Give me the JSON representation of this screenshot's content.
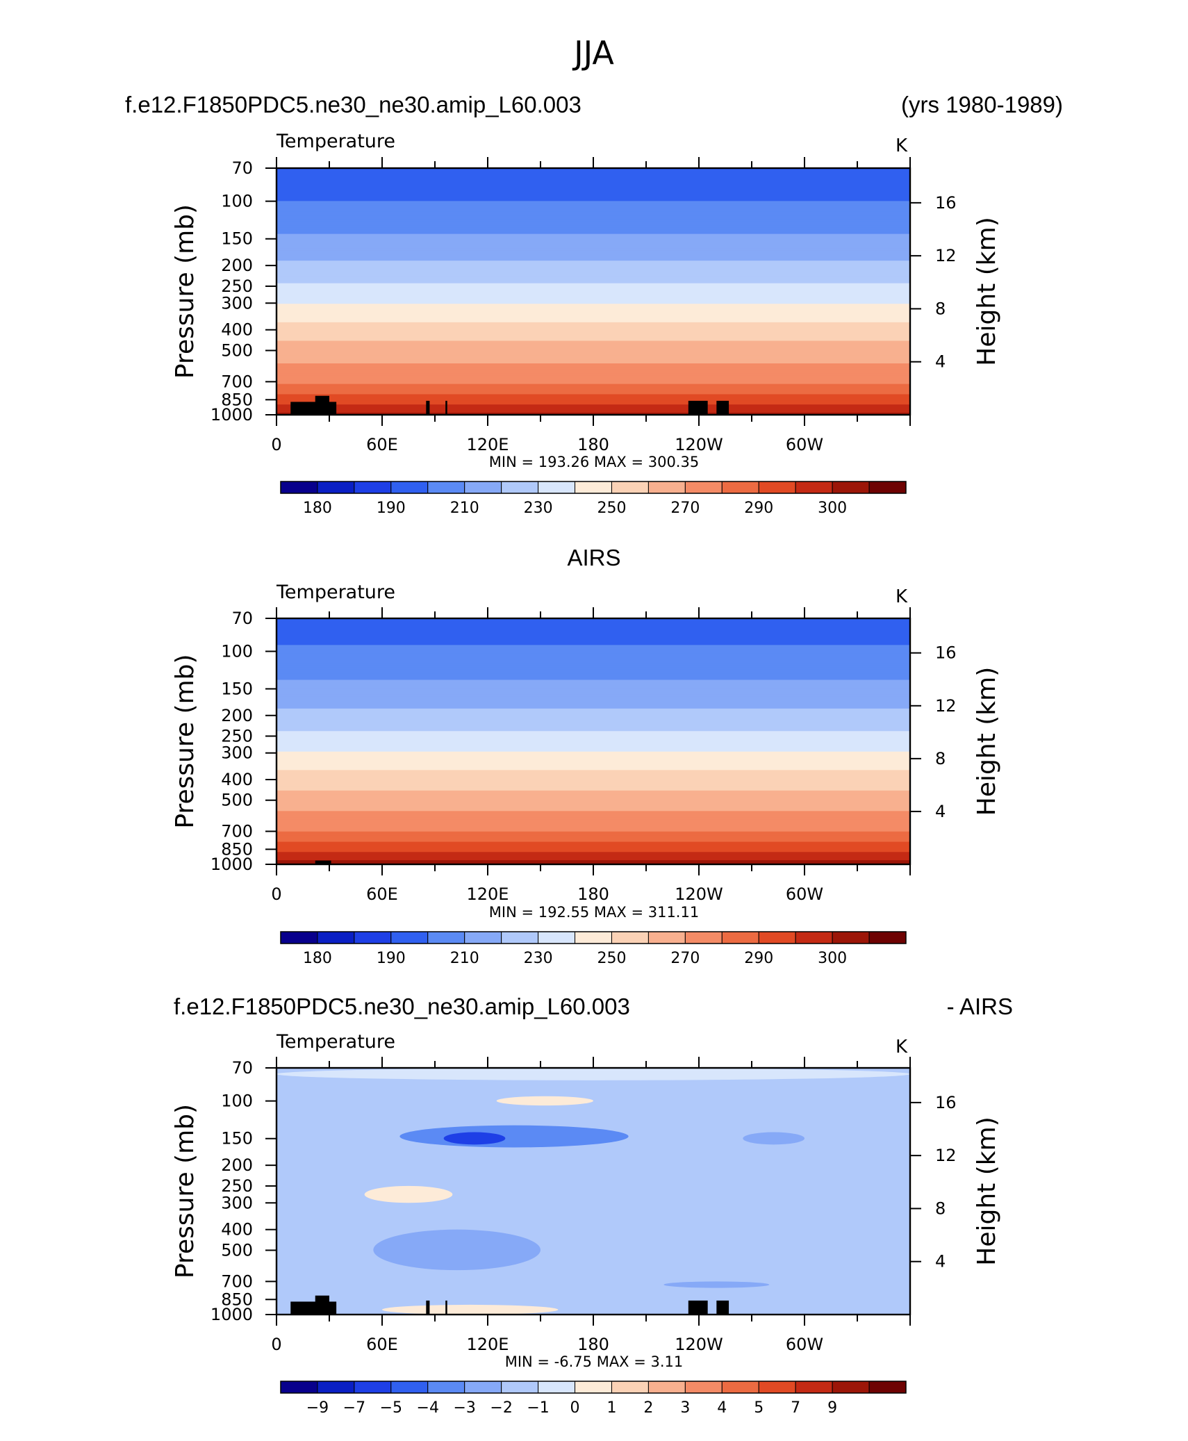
{
  "page": {
    "title": "JJA"
  },
  "panels": [
    {
      "header_left": "f.e12.F1850PDC5.ne30_ne30.amip_L60.003",
      "header_center": "",
      "header_right": "(yrs 1980-1989)",
      "variable": "Temperature",
      "units": "K",
      "stats": "MIN =  193.26   MAX =  300.35"
    },
    {
      "header_left": "",
      "header_center": "AIRS",
      "header_right": "",
      "variable": "Temperature",
      "units": "K",
      "stats": "MIN =  192.55   MAX =  311.11"
    },
    {
      "header_left": "f.e12.F1850PDC5.ne30_ne30.amip_L60.003",
      "header_center": "",
      "header_right": "- AIRS",
      "variable": "Temperature",
      "units": "K",
      "stats": "MIN =    -6.75   MAX =     3.11"
    }
  ],
  "colors": {
    "temperature_scale": [
      "#08008c",
      "#0a1fc4",
      "#1e3fe6",
      "#3060f0",
      "#5b8af4",
      "#86a9f7",
      "#b0c9fa",
      "#d8e6fc",
      "#fdebd8",
      "#fbd2b6",
      "#f8b08f",
      "#f48b66",
      "#ec6b42",
      "#e14a24",
      "#c42a14",
      "#9c1608",
      "#6e0202"
    ],
    "difference_scale": [
      "#08008c",
      "#0a1fc4",
      "#1e3fe6",
      "#3060f0",
      "#5b8af4",
      "#86a9f7",
      "#b0c9fa",
      "#d8e6fc",
      "#fdebd8",
      "#fbd2b6",
      "#f8b08f",
      "#f48b66",
      "#ec6b42",
      "#e14a24",
      "#c42a14",
      "#9c1608",
      "#6e0202"
    ]
  },
  "chart_data": [
    {
      "type": "heatmap",
      "title": "f.e12.F1850PDC5.ne30_ne30.amip_L60.003",
      "xlabel": "",
      "ylabel": "Pressure (mb)",
      "y2label": "Height (km)",
      "x_ticks": [
        "0",
        "60E",
        "120E",
        "180",
        "120W",
        "60W"
      ],
      "y_ticks": [
        "70",
        "100",
        "150",
        "200",
        "250",
        "300",
        "400",
        "500",
        "700",
        "850",
        "1000"
      ],
      "y2_ticks": [
        "16",
        "12",
        "8",
        "4"
      ],
      "ylim": [
        1000,
        70
      ],
      "log_scale_y": true,
      "colorbar_labels": [
        "180",
        "190",
        "210",
        "230",
        "250",
        "270",
        "290",
        "300"
      ],
      "levels": [
        175,
        180,
        185,
        190,
        200,
        210,
        220,
        230,
        240,
        250,
        260,
        270,
        280,
        285,
        290,
        295,
        300,
        305
      ],
      "profile": {
        "pressure": [
          1000,
          925,
          850,
          700,
          600,
          500,
          400,
          300,
          250,
          200,
          150,
          100,
          70
        ],
        "value": [
          297,
          292,
          288,
          279,
          272,
          265,
          254,
          240,
          232,
          222,
          212,
          200,
          196
        ]
      },
      "min": 193.26,
      "max": 300.35
    },
    {
      "type": "heatmap",
      "title": "AIRS",
      "xlabel": "",
      "ylabel": "Pressure (mb)",
      "y2label": "Height (km)",
      "x_ticks": [
        "0",
        "60E",
        "120E",
        "180",
        "120W",
        "60W"
      ],
      "y_ticks": [
        "70",
        "100",
        "150",
        "200",
        "250",
        "300",
        "400",
        "500",
        "700",
        "850",
        "1000"
      ],
      "y2_ticks": [
        "16",
        "12",
        "8",
        "4"
      ],
      "ylim": [
        1000,
        70
      ],
      "log_scale_y": true,
      "colorbar_labels": [
        "180",
        "190",
        "210",
        "230",
        "250",
        "270",
        "290",
        "300"
      ],
      "levels": [
        175,
        180,
        185,
        190,
        200,
        210,
        220,
        230,
        240,
        250,
        260,
        270,
        280,
        285,
        290,
        295,
        300,
        305
      ],
      "profile": {
        "pressure": [
          1000,
          925,
          850,
          700,
          600,
          500,
          400,
          300,
          250,
          200,
          150,
          100,
          70
        ],
        "value": [
          298,
          293,
          289,
          280,
          273,
          266,
          255,
          241,
          233,
          223,
          213,
          201,
          196
        ]
      },
      "min": 192.55,
      "max": 311.11
    },
    {
      "type": "heatmap",
      "title": "f.e12.F1850PDC5.ne30_ne30.amip_L60.003 - AIRS",
      "xlabel": "",
      "ylabel": "Pressure (mb)",
      "y2label": "Height (km)",
      "x_ticks": [
        "0",
        "60E",
        "120E",
        "180",
        "120W",
        "60W"
      ],
      "y_ticks": [
        "70",
        "100",
        "150",
        "200",
        "250",
        "300",
        "400",
        "500",
        "700",
        "850",
        "1000"
      ],
      "y2_ticks": [
        "16",
        "12",
        "8",
        "4"
      ],
      "ylim": [
        1000,
        70
      ],
      "log_scale_y": true,
      "colorbar_labels": [
        "−9",
        "−7",
        "−5",
        "−4",
        "−3",
        "−2",
        "−1",
        "0",
        "1",
        "2",
        "3",
        "4",
        "5",
        "7",
        "9"
      ],
      "background_value": -1.5,
      "features": [
        {
          "lon": [
            70,
            200
          ],
          "p": [
            130,
            165
          ],
          "value": -3.5
        },
        {
          "lon": [
            95,
            130
          ],
          "p": [
            140,
            160
          ],
          "value": -5.5
        },
        {
          "lon": [
            55,
            150
          ],
          "p": [
            400,
            620
          ],
          "value": -2.5
        },
        {
          "lon": [
            125,
            180
          ],
          "p": [
            95,
            105
          ],
          "value": 0.5
        },
        {
          "lon": [
            50,
            100
          ],
          "p": [
            250,
            300
          ],
          "value": 0.5
        },
        {
          "lon": [
            265,
            300
          ],
          "p": [
            140,
            160
          ],
          "value": -2.5
        },
        {
          "lon": [
            220,
            280
          ],
          "p": [
            700,
            750
          ],
          "value": -2.5
        },
        {
          "lon": [
            60,
            160
          ],
          "p": [
            900,
            1000
          ],
          "value": 0.5
        },
        {
          "lon": [
            0,
            360
          ],
          "p": [
            70,
            80
          ],
          "value": -0.5
        }
      ],
      "min": -6.75,
      "max": 3.11
    }
  ]
}
